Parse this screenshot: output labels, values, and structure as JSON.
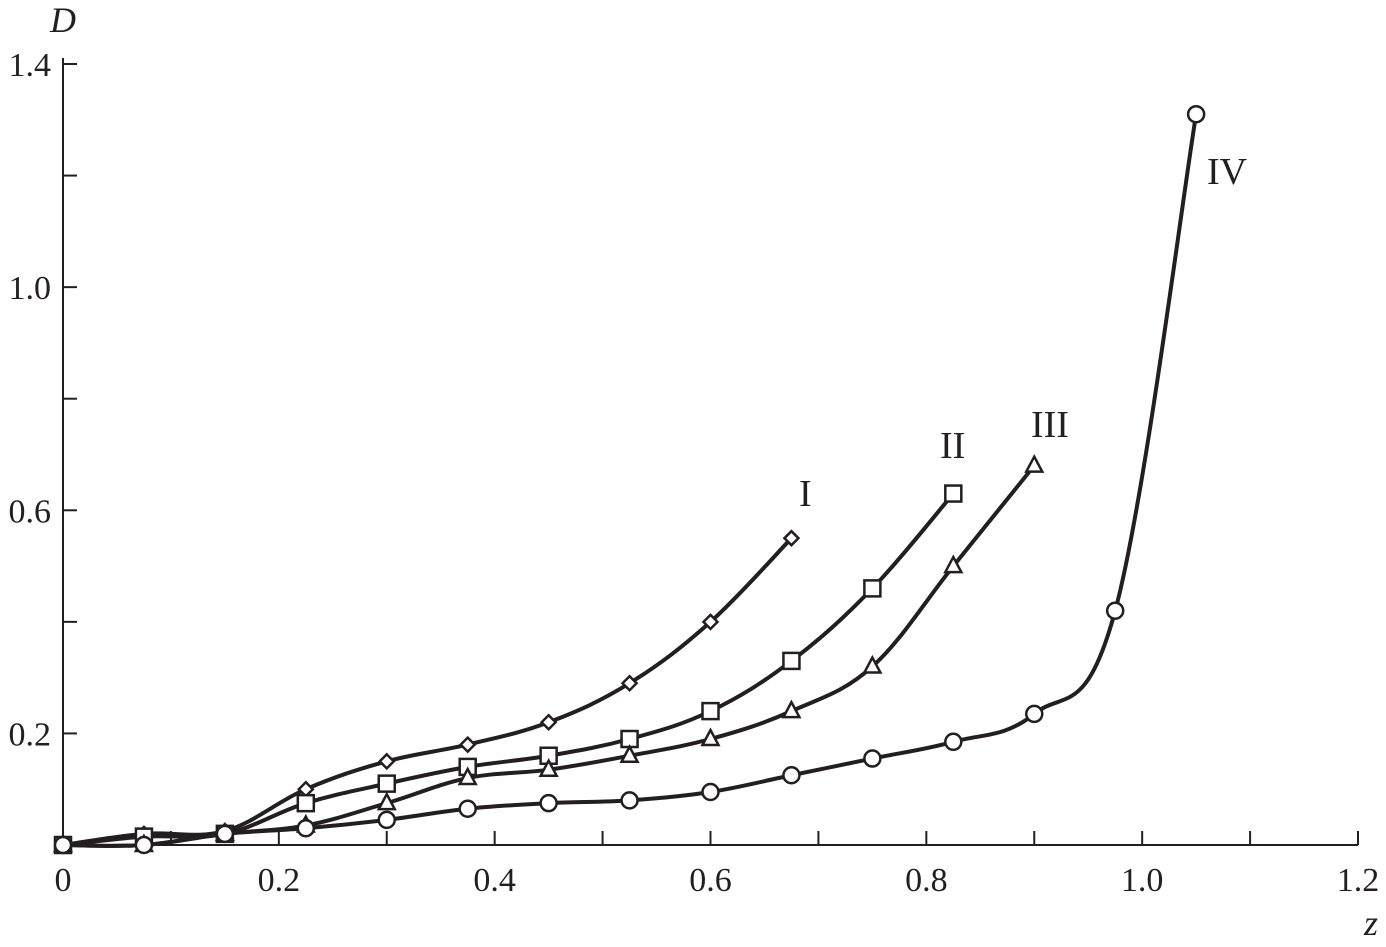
{
  "chart_data": {
    "type": "line",
    "title": "",
    "xlabel": "z",
    "ylabel": "D",
    "xlim": [
      0,
      1.2
    ],
    "ylim": [
      0,
      1.4
    ],
    "x_ticks": [
      0,
      0.1,
      0.2,
      0.3,
      0.4,
      0.5,
      0.6,
      0.7,
      0.8,
      0.9,
      1.0,
      1.1,
      1.2
    ],
    "x_tick_labels": [
      "0",
      "",
      "0.2",
      "",
      "0.4",
      "",
      "0.6",
      "",
      "0.8",
      "",
      "1.0",
      "",
      "1.2"
    ],
    "y_ticks": [
      0.2,
      0.4,
      0.6,
      0.8,
      1.0,
      1.2,
      1.4
    ],
    "y_tick_labels": [
      "0.2",
      "",
      "0.6",
      "",
      "1.0",
      "",
      "1.4"
    ],
    "grid": false,
    "legend": "none",
    "line_color": "#231f20",
    "series": [
      {
        "name": "I",
        "marker": "diamond",
        "x": [
          0,
          0.075,
          0.15,
          0.225,
          0.3,
          0.375,
          0.45,
          0.525,
          0.6,
          0.675
        ],
        "y": [
          0,
          0.02,
          0.025,
          0.1,
          0.15,
          0.18,
          0.22,
          0.29,
          0.4,
          0.55
        ]
      },
      {
        "name": "II",
        "marker": "square",
        "x": [
          0,
          0.075,
          0.15,
          0.225,
          0.3,
          0.375,
          0.45,
          0.525,
          0.6,
          0.675,
          0.75,
          0.825
        ],
        "y": [
          0,
          0.015,
          0.02,
          0.075,
          0.11,
          0.14,
          0.16,
          0.19,
          0.24,
          0.33,
          0.46,
          0.63
        ]
      },
      {
        "name": "III",
        "marker": "triangle",
        "x": [
          0,
          0.075,
          0.15,
          0.225,
          0.3,
          0.375,
          0.45,
          0.525,
          0.6,
          0.675,
          0.75,
          0.825,
          0.9
        ],
        "y": [
          0,
          0,
          0.02,
          0.035,
          0.075,
          0.12,
          0.135,
          0.16,
          0.19,
          0.24,
          0.32,
          0.5,
          0.68
        ]
      },
      {
        "name": "IV",
        "marker": "circle",
        "x": [
          0,
          0.075,
          0.15,
          0.225,
          0.3,
          0.375,
          0.45,
          0.525,
          0.6,
          0.675,
          0.75,
          0.825,
          0.9,
          0.975,
          1.05
        ],
        "y": [
          0,
          0,
          0.02,
          0.03,
          0.045,
          0.065,
          0.075,
          0.08,
          0.095,
          0.125,
          0.155,
          0.185,
          0.235,
          0.42,
          1.31
        ]
      }
    ]
  }
}
